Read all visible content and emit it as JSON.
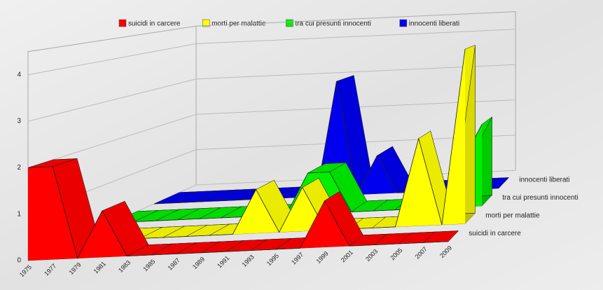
{
  "chart_data": {
    "type": "area3d",
    "categories": [
      "1975",
      "1977",
      "1979",
      "1981",
      "1983",
      "1985",
      "1987",
      "1989",
      "1991",
      "1993",
      "1995",
      "1997",
      "1999",
      "2001",
      "2003",
      "2005",
      "2007",
      "2009"
    ],
    "series": [
      {
        "name": "suicidi in carcere",
        "color": "#ff0000",
        "values": [
          2,
          2,
          0,
          1,
          0,
          0,
          0,
          0,
          0,
          0,
          0,
          0,
          1,
          0,
          0,
          0,
          0,
          0
        ]
      },
      {
        "name": "morti per malattie",
        "color": "#ffff00",
        "values": [
          0,
          0,
          0,
          0,
          0,
          0,
          0,
          0,
          1,
          0,
          1,
          0,
          0,
          0,
          0,
          2,
          0,
          4
        ]
      },
      {
        "name": "tra cui presunti innocenti",
        "color": "#00ee00",
        "values": [
          0,
          0,
          0,
          0,
          0,
          0,
          0,
          0,
          0,
          1,
          1,
          0,
          0,
          0,
          0,
          0,
          1,
          2
        ]
      },
      {
        "name": "innocenti liberati",
        "color": "#0000ee",
        "values": [
          0,
          0,
          0,
          0,
          0,
          0,
          0,
          0,
          0,
          3,
          0,
          1,
          0,
          0,
          0,
          0,
          0,
          0
        ]
      }
    ],
    "ylim": [
      0,
      4.5
    ],
    "yticks": [
      0,
      1,
      2,
      3,
      4
    ],
    "grid": true,
    "legend": "top"
  }
}
